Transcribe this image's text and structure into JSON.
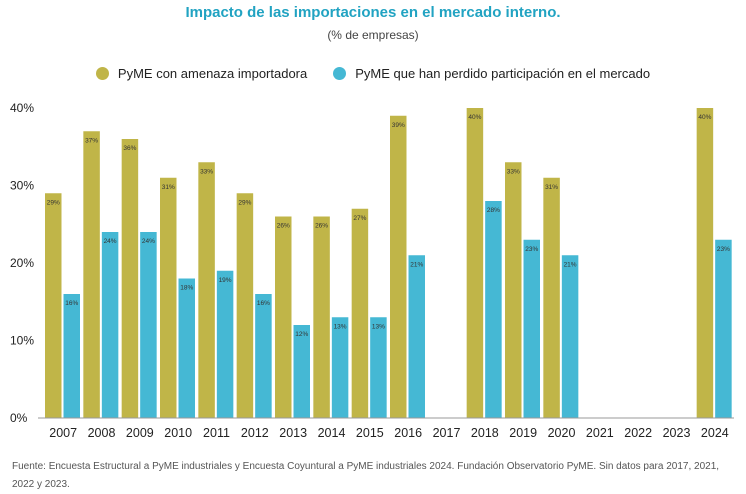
{
  "title": "Impacto de las importaciones en el mercado interno.",
  "subtitle": "(% de empresas)",
  "footnote": "Fuente: Encuesta Estructural a PyME industriales y Encuesta Coyuntural a PyME industriales 2024. Fundación Observatorio PyME. Sin datos para 2017, 2021, 2022 y 2023.",
  "colors": {
    "series1": "#c0b548",
    "series2": "#45b8d4",
    "title": "#21a3c2"
  },
  "chart_data": {
    "type": "bar",
    "categories": [
      "2007",
      "2008",
      "2009",
      "2010",
      "2011",
      "2012",
      "2013",
      "2014",
      "2015",
      "2016",
      "2017",
      "2018",
      "2019",
      "2020",
      "2021",
      "2022",
      "2023",
      "2024"
    ],
    "series": [
      {
        "name": "PyME con amenaza importadora",
        "color": "#c0b548",
        "values": [
          29,
          37,
          36,
          31,
          33,
          29,
          26,
          26,
          27,
          39,
          null,
          40,
          33,
          31,
          null,
          null,
          null,
          40
        ],
        "labels": [
          "29%",
          "37%",
          "36%",
          "31%",
          "33%",
          "29%",
          "26%",
          "26%",
          "27%",
          "39%",
          "",
          "40%",
          "33%",
          "31%",
          "",
          "",
          "",
          "40%"
        ]
      },
      {
        "name": "PyME que han perdido participación en el mercado",
        "color": "#45b8d4",
        "values": [
          16,
          24,
          24,
          18,
          19,
          16,
          12,
          13,
          13,
          21,
          null,
          28,
          23,
          21,
          null,
          null,
          null,
          23
        ],
        "labels": [
          "16%",
          "24%",
          "24%",
          "18%",
          "19%",
          "16%",
          "12%",
          "13%",
          "13%",
          "21%",
          "",
          "28%",
          "23%",
          "21%",
          "",
          "",
          "",
          "23%"
        ]
      }
    ],
    "yticks": [
      "0%",
      "10%",
      "20%",
      "30%",
      "40%"
    ],
    "ylim": [
      0,
      40
    ],
    "grid": false,
    "legend_position": "top"
  }
}
